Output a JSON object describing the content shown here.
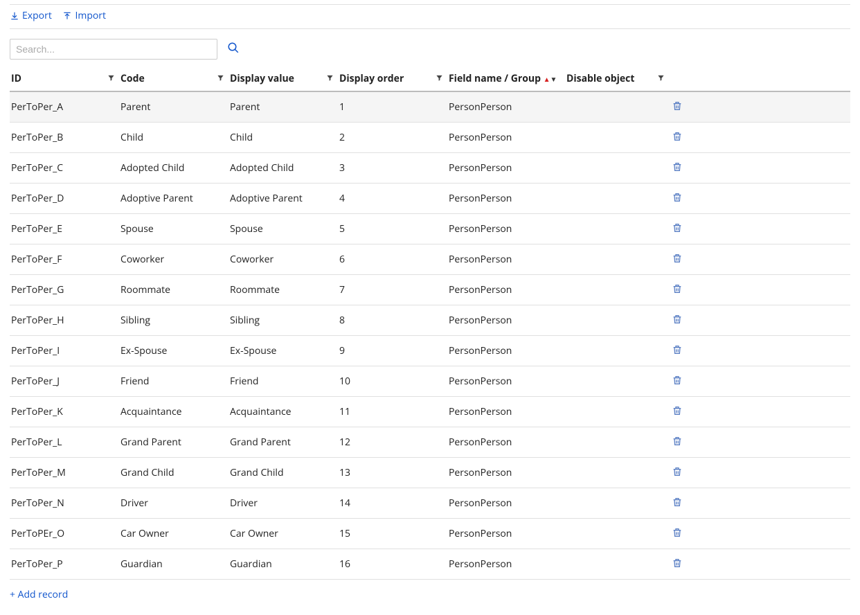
{
  "toolbar": {
    "export_label": "Export",
    "import_label": "Import"
  },
  "search": {
    "placeholder": "Search..."
  },
  "table": {
    "columns": [
      {
        "label": "ID",
        "filter": true,
        "sort": null
      },
      {
        "label": "Code",
        "filter": true,
        "sort": null
      },
      {
        "label": "Display value",
        "filter": true,
        "sort": null
      },
      {
        "label": "Display order",
        "filter": true,
        "sort": null
      },
      {
        "label": "Field name / Group",
        "filter": false,
        "sort": "asc"
      },
      {
        "label": "Disable object",
        "filter": true,
        "sort": null
      }
    ],
    "rows": [
      {
        "id": "PerToPer_A",
        "code": "Parent",
        "display": "Parent",
        "order": "1",
        "group": "PersonPerson",
        "disable": "",
        "selected": true
      },
      {
        "id": "PerToPer_B",
        "code": "Child",
        "display": "Child",
        "order": "2",
        "group": "PersonPerson",
        "disable": "",
        "selected": false
      },
      {
        "id": "PerToPer_C",
        "code": "Adopted Child",
        "display": "Adopted Child",
        "order": "3",
        "group": "PersonPerson",
        "disable": "",
        "selected": false
      },
      {
        "id": "PerToPer_D",
        "code": "Adoptive Parent",
        "display": "Adoptive Parent",
        "order": "4",
        "group": "PersonPerson",
        "disable": "",
        "selected": false
      },
      {
        "id": "PerToPer_E",
        "code": "Spouse",
        "display": "Spouse",
        "order": "5",
        "group": "PersonPerson",
        "disable": "",
        "selected": false
      },
      {
        "id": "PerToPer_F",
        "code": "Coworker",
        "display": "Coworker",
        "order": "6",
        "group": "PersonPerson",
        "disable": "",
        "selected": false
      },
      {
        "id": "PerToPer_G",
        "code": "Roommate",
        "display": "Roommate",
        "order": "7",
        "group": "PersonPerson",
        "disable": "",
        "selected": false
      },
      {
        "id": "PerToPer_H",
        "code": "Sibling",
        "display": "Sibling",
        "order": "8",
        "group": "PersonPerson",
        "disable": "",
        "selected": false
      },
      {
        "id": "PerToPer_I",
        "code": "Ex-Spouse",
        "display": "Ex-Spouse",
        "order": "9",
        "group": "PersonPerson",
        "disable": "",
        "selected": false
      },
      {
        "id": "PerToPer_J",
        "code": "Friend",
        "display": "Friend",
        "order": "10",
        "group": "PersonPerson",
        "disable": "",
        "selected": false
      },
      {
        "id": "PerToPer_K",
        "code": "Acquaintance",
        "display": "Acquaintance",
        "order": "11",
        "group": "PersonPerson",
        "disable": "",
        "selected": false
      },
      {
        "id": "PerToPer_L",
        "code": "Grand Parent",
        "display": "Grand Parent",
        "order": "12",
        "group": "PersonPerson",
        "disable": "",
        "selected": false
      },
      {
        "id": "PerToPer_M",
        "code": "Grand Child",
        "display": "Grand Child",
        "order": "13",
        "group": "PersonPerson",
        "disable": "",
        "selected": false
      },
      {
        "id": "PerToPer_N",
        "code": "Driver",
        "display": "Driver",
        "order": "14",
        "group": "PersonPerson",
        "disable": "",
        "selected": false
      },
      {
        "id": "PerToPEr_O",
        "code": "Car Owner",
        "display": "Car Owner",
        "order": "15",
        "group": "PersonPerson",
        "disable": "",
        "selected": false
      },
      {
        "id": "PerToPer_P",
        "code": "Guardian",
        "display": "Guardian",
        "order": "16",
        "group": "PersonPerson",
        "disable": "",
        "selected": false
      }
    ]
  },
  "footer": {
    "add_record_label": "+ Add record"
  },
  "colors": {
    "link": "#1155cc",
    "sort_indicator": "#d62020",
    "trash_icon": "#5a7fc4",
    "border": "#e0e0e0",
    "header_border": "#bbbbbb",
    "selected_row_bg": "#f5f5f5"
  }
}
